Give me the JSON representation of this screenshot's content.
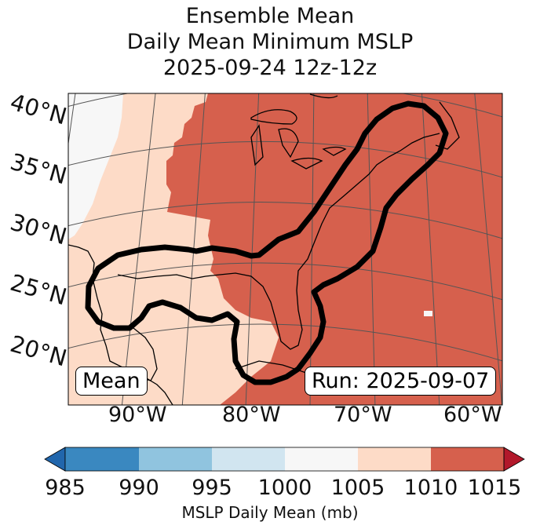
{
  "title": {
    "line1": "Ensemble Mean",
    "line2": "Daily Mean Minimum MSLP",
    "line3": "2025-09-24 12z-12z"
  },
  "lat_labels": [
    "40°N",
    "35°N",
    "30°N",
    "25°N",
    "20°N"
  ],
  "lon_labels": [
    "90°W",
    "80°W",
    "70°W",
    "60°W"
  ],
  "mean_box": "Mean",
  "run_box": "Run: 2025-09-07",
  "colorbar": {
    "ticks": [
      "985",
      "990",
      "995",
      "1000",
      "1005",
      "1010",
      "1015"
    ],
    "label": "MSLP Daily Mean (mb)",
    "colors": [
      "#3a88c0",
      "#90c4df",
      "#d1e5f0",
      "#f7f7f7",
      "#fddbc7",
      "#d6604d"
    ],
    "under_color": "#2166ac",
    "over_color": "#b2182b"
  }
}
